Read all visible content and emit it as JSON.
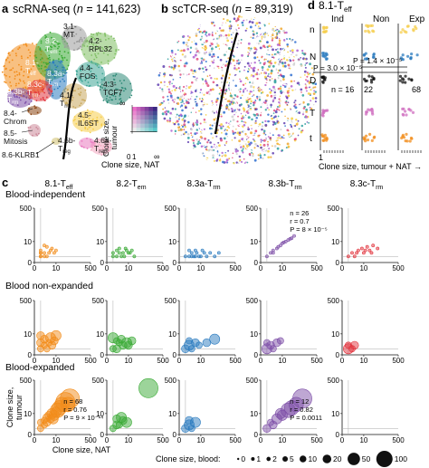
{
  "panel_a": {
    "letter": "a",
    "title": "scRNA-seq (",
    "n_label": "n",
    "n_value": " = 141,623)",
    "clusters": [
      {
        "label": "8.1-",
        "sub": "Teff",
        "color": "#f28c1a"
      },
      {
        "label": "8.2-",
        "sub": "Tem",
        "color": "#3aaa35"
      },
      {
        "label": "8.3a-",
        "sub": "Trm",
        "color": "#2b7bbf"
      },
      {
        "label": "8.3b-",
        "sub": "Trm",
        "color": "#7e4fa8"
      },
      {
        "label": "8.3c-",
        "sub": "Trm",
        "color": "#e2343d"
      },
      {
        "label": "3.1-",
        "sub": "MT",
        "color": "#9a9a9a"
      },
      {
        "label": "4.1-",
        "sub": "Trm",
        "color": "#c9a85c"
      },
      {
        "label": "4.2-",
        "sub": "RPL32",
        "color": "#7fbf63"
      },
      {
        "label": "4.3-",
        "sub": "TCF7",
        "color": "#2f8b78"
      },
      {
        "label": "4.4-",
        "sub": "FOS",
        "color": "#3ea596"
      },
      {
        "label": "4.5-",
        "sub": "IL6ST",
        "color": "#f6cd4c"
      },
      {
        "label": "4.6a-",
        "sub": "Treg",
        "color": "#f4a6c0"
      },
      {
        "label": "4.6b-",
        "sub": "Treg",
        "color": "#e97ac0"
      },
      {
        "label": "8.4-",
        "sub": "Chrom",
        "color": "#8b4513"
      },
      {
        "label": "8.5-",
        "sub": "Mitosis",
        "color": "#cc8899"
      },
      {
        "label": "8.6-KLRB1",
        "sub": "",
        "color": "#d0c070"
      }
    ],
    "legend": {
      "title": "Clone size,\ntumour",
      "ticks": [
        "0",
        "1",
        "∞"
      ],
      "xlabel": "Clone size, NAT",
      "x_inf": "∞",
      "y_inf": "∞"
    }
  },
  "panel_b": {
    "letter": "b",
    "title": "scTCR-seq (",
    "n_label": "n",
    "n_value": " = 89,319)"
  },
  "panel_d": {
    "letter": "d",
    "title": "8.1-T",
    "title_sub": "eff",
    "columns": [
      "Ind",
      "Non",
      "Exp"
    ],
    "y_letters": [
      "n",
      "N",
      "D",
      "T",
      "t"
    ],
    "counts": [
      "n = 16",
      "22",
      "68"
    ],
    "p_values": [
      "P = 3.0 × 10⁻⁵",
      "P = 1.4 × 10⁻⁵"
    ],
    "xtick": "1",
    "xlabel": "Clone size, tumour + NAT"
  },
  "panel_c": {
    "letter": "c",
    "col_titles": [
      {
        "main": "8.1-T",
        "sub": "eff"
      },
      {
        "main": "8.2-T",
        "sub": "em"
      },
      {
        "main": "8.3a-T",
        "sub": "rm"
      },
      {
        "main": "8.3b-T",
        "sub": "rm"
      },
      {
        "main": "8.3c-T",
        "sub": "rm"
      }
    ],
    "row_titles": [
      "Blood-independent",
      "Blood non-expanded",
      "Blood-expanded"
    ],
    "ticks": [
      "0",
      "10",
      "500"
    ],
    "xlabel": "Clone size, NAT",
    "ylabel": "Clone size,\ntumour",
    "stats": [
      {
        "row": 0,
        "col": 3,
        "lines": [
          "n = 26",
          "r = 0.7",
          "P = 8 × 10⁻⁵"
        ]
      },
      {
        "row": 2,
        "col": 0,
        "lines": [
          "n = 68",
          "r = 0.76",
          "P = 9 × 10⁻¹⁴"
        ]
      },
      {
        "row": 2,
        "col": 3,
        "lines": [
          "n = 12",
          "r = 0.82",
          "P = 0.0011"
        ]
      }
    ],
    "size_legend": {
      "title": "Clone size, blood:",
      "values": [
        0,
        1,
        2,
        5,
        10,
        20,
        50,
        100
      ]
    }
  },
  "chart_data": {
    "type": "scatter",
    "axis_scale": "pseudo-log",
    "xlim": [
      0,
      500
    ],
    "ylim": [
      0,
      500
    ],
    "xticks": [
      0,
      10,
      500
    ],
    "yticks": [
      0,
      10,
      500
    ],
    "series": [
      {
        "name": "8.1-Teff",
        "color": "#f28c1a"
      },
      {
        "name": "8.2-Tem",
        "color": "#3aaa35"
      },
      {
        "name": "8.3a-Trm",
        "color": "#2b7bbf"
      },
      {
        "name": "8.3b-Trm",
        "color": "#7e4fa8"
      },
      {
        "name": "8.3c-Trm",
        "color": "#e2343d"
      }
    ],
    "panels": [
      {
        "row": 0,
        "col": 0,
        "points": [
          [
            1,
            1,
            0
          ],
          [
            1,
            2,
            0
          ],
          [
            2,
            1,
            0
          ],
          [
            2,
            2,
            0
          ],
          [
            3,
            1,
            0
          ],
          [
            1,
            3,
            0
          ],
          [
            4,
            2,
            0
          ],
          [
            5,
            3,
            0
          ],
          [
            3,
            5,
            0
          ],
          [
            6,
            4,
            0
          ],
          [
            8,
            2,
            0
          ],
          [
            2,
            6,
            0
          ],
          [
            10,
            3,
            0
          ],
          [
            1,
            1,
            0
          ],
          [
            1,
            2,
            0
          ]
        ]
      },
      {
        "row": 0,
        "col": 1,
        "points": [
          [
            1,
            1,
            0
          ],
          [
            2,
            1,
            0
          ],
          [
            3,
            2,
            0
          ],
          [
            4,
            1,
            0
          ],
          [
            5,
            2,
            0
          ],
          [
            6,
            1,
            0
          ],
          [
            8,
            3,
            0
          ],
          [
            10,
            2,
            0
          ],
          [
            2,
            3,
            0
          ],
          [
            3,
            4,
            0
          ],
          [
            12,
            2,
            0
          ],
          [
            15,
            3,
            0
          ],
          [
            1,
            2,
            0
          ],
          [
            7,
            4,
            0
          ],
          [
            20,
            1,
            0
          ]
        ]
      },
      {
        "row": 0,
        "col": 2,
        "points": [
          [
            1,
            1,
            0
          ],
          [
            2,
            1,
            0
          ],
          [
            3,
            1,
            0
          ],
          [
            4,
            1,
            0
          ],
          [
            5,
            1,
            0
          ],
          [
            6,
            2,
            0
          ],
          [
            8,
            1,
            0
          ],
          [
            10,
            1,
            0
          ],
          [
            15,
            2,
            0
          ],
          [
            20,
            1,
            0
          ],
          [
            30,
            2,
            0
          ],
          [
            50,
            1,
            0
          ],
          [
            80,
            2,
            0
          ],
          [
            2,
            3,
            0
          ],
          [
            3,
            2,
            0
          ],
          [
            5,
            3,
            0
          ],
          [
            12,
            3,
            0
          ]
        ]
      },
      {
        "row": 0,
        "col": 3,
        "points": [
          [
            1,
            1,
            0
          ],
          [
            2,
            2,
            0
          ],
          [
            3,
            3,
            0
          ],
          [
            5,
            4,
            0
          ],
          [
            8,
            6,
            0
          ],
          [
            10,
            8,
            0
          ],
          [
            15,
            10,
            0
          ],
          [
            20,
            12,
            0
          ],
          [
            30,
            15,
            0
          ],
          [
            40,
            20,
            0
          ],
          [
            3,
            2,
            0
          ],
          [
            6,
            5,
            0
          ],
          [
            12,
            9,
            0
          ],
          [
            25,
            14,
            0
          ]
        ]
      },
      {
        "row": 0,
        "col": 4,
        "points": [
          [
            1,
            1,
            0
          ],
          [
            2,
            2,
            0
          ],
          [
            3,
            1,
            0
          ],
          [
            5,
            3,
            0
          ],
          [
            8,
            4,
            0
          ],
          [
            10,
            2,
            0
          ],
          [
            15,
            5,
            0
          ],
          [
            20,
            3,
            0
          ],
          [
            30,
            6,
            0
          ],
          [
            50,
            4,
            0
          ],
          [
            4,
            2,
            0
          ],
          [
            12,
            3,
            0
          ],
          [
            25,
            2,
            0
          ]
        ]
      },
      {
        "row": 1,
        "col": 0,
        "points": [
          [
            1,
            1,
            5
          ],
          [
            2,
            2,
            5
          ],
          [
            1,
            3,
            10
          ],
          [
            3,
            1,
            5
          ],
          [
            2,
            5,
            10
          ],
          [
            4,
            3,
            5
          ],
          [
            6,
            2,
            10
          ],
          [
            5,
            6,
            20
          ],
          [
            8,
            4,
            10
          ],
          [
            10,
            8,
            20
          ],
          [
            1,
            8,
            10
          ]
        ]
      },
      {
        "row": 1,
        "col": 1,
        "points": [
          [
            1,
            1,
            5
          ],
          [
            2,
            1,
            10
          ],
          [
            3,
            3,
            5
          ],
          [
            5,
            2,
            10
          ],
          [
            8,
            3,
            20
          ],
          [
            10,
            2,
            10
          ],
          [
            2,
            4,
            5
          ],
          [
            4,
            5,
            10
          ],
          [
            15,
            4,
            10
          ],
          [
            1,
            6,
            20
          ]
        ]
      },
      {
        "row": 1,
        "col": 2,
        "points": [
          [
            1,
            1,
            10
          ],
          [
            2,
            2,
            20
          ],
          [
            3,
            1,
            5
          ],
          [
            5,
            3,
            10
          ],
          [
            8,
            2,
            5
          ],
          [
            20,
            3,
            10
          ],
          [
            50,
            5,
            20
          ],
          [
            2,
            4,
            5
          ]
        ]
      },
      {
        "row": 1,
        "col": 3,
        "points": [
          [
            1,
            1,
            20
          ],
          [
            2,
            2,
            10
          ],
          [
            3,
            1,
            5
          ],
          [
            5,
            3,
            10
          ],
          [
            8,
            4,
            5
          ],
          [
            1,
            3,
            5
          ]
        ]
      },
      {
        "row": 1,
        "col": 4,
        "points": [
          [
            1,
            1,
            20
          ],
          [
            2,
            1,
            5
          ],
          [
            3,
            2,
            10
          ],
          [
            1,
            2,
            5
          ]
        ]
      },
      {
        "row": 2,
        "col": 0,
        "points": [
          [
            1,
            1,
            5
          ],
          [
            2,
            2,
            5
          ],
          [
            3,
            3,
            10
          ],
          [
            5,
            5,
            10
          ],
          [
            8,
            8,
            20
          ],
          [
            10,
            12,
            20
          ],
          [
            15,
            20,
            50
          ],
          [
            20,
            30,
            50
          ],
          [
            30,
            40,
            100
          ],
          [
            50,
            60,
            100
          ],
          [
            2,
            4,
            5
          ],
          [
            4,
            8,
            10
          ],
          [
            6,
            10,
            20
          ],
          [
            12,
            15,
            50
          ],
          [
            1,
            3,
            5
          ],
          [
            3,
            6,
            10
          ],
          [
            40,
            30,
            50
          ],
          [
            7,
            5,
            20
          ]
        ]
      },
      {
        "row": 2,
        "col": 1,
        "points": [
          [
            1,
            1,
            5
          ],
          [
            2,
            2,
            10
          ],
          [
            3,
            2,
            5
          ],
          [
            5,
            4,
            10
          ],
          [
            8,
            3,
            20
          ],
          [
            2,
            5,
            10
          ],
          [
            100,
            200,
            100
          ],
          [
            4,
            6,
            20
          ]
        ]
      },
      {
        "row": 2,
        "col": 2,
        "points": [
          [
            1,
            1,
            10
          ],
          [
            2,
            2,
            20
          ],
          [
            3,
            1,
            5
          ],
          [
            5,
            3,
            20
          ],
          [
            2,
            4,
            10
          ]
        ]
      },
      {
        "row": 2,
        "col": 3,
        "points": [
          [
            1,
            1,
            10
          ],
          [
            3,
            2,
            10
          ],
          [
            5,
            5,
            20
          ],
          [
            10,
            8,
            20
          ],
          [
            20,
            15,
            50
          ],
          [
            50,
            30,
            50
          ],
          [
            100,
            60,
            100
          ],
          [
            2,
            3,
            5
          ],
          [
            8,
            10,
            20
          ],
          [
            30,
            20,
            50
          ]
        ]
      },
      {
        "row": 2,
        "col": 4,
        "points": []
      }
    ]
  }
}
